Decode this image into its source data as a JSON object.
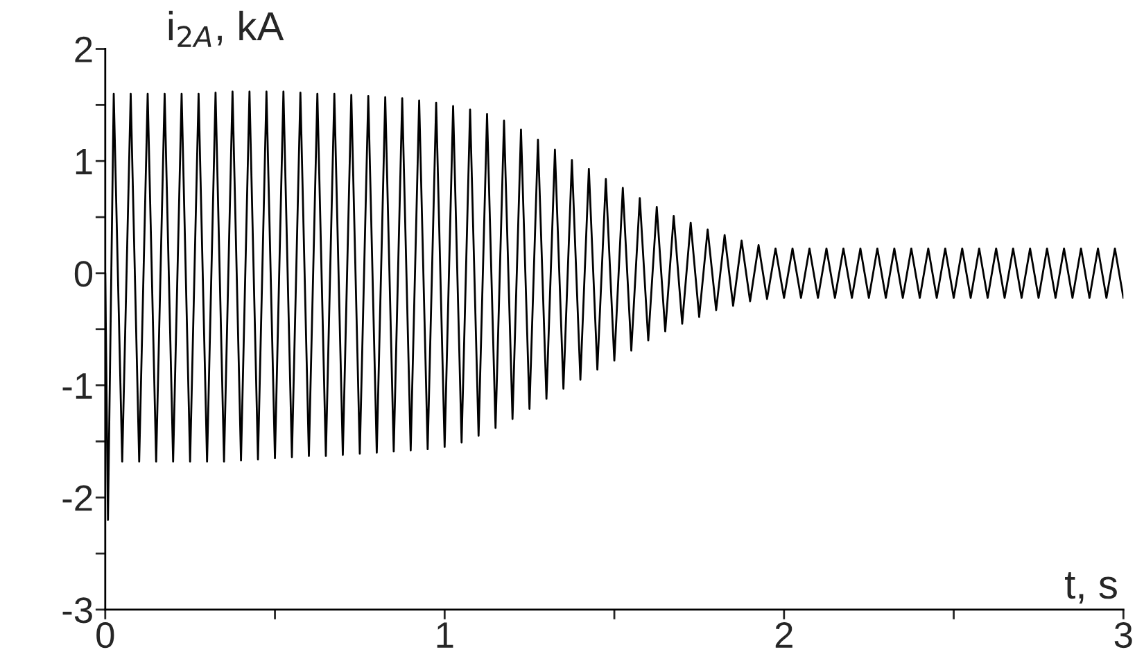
{
  "chart_data": {
    "type": "line",
    "xlabel": "t, s",
    "ylabel": "i$_{2A}$, kA",
    "xlim": [
      0,
      3
    ],
    "ylim": [
      -3,
      2
    ],
    "xticks": [
      0,
      {
        "value": 0.5,
        "label": null
      },
      1,
      {
        "value": 1.5,
        "label": null
      },
      2,
      {
        "value": 2.5,
        "label": null
      },
      3
    ],
    "yticks": [
      -3,
      {
        "value": -2.5,
        "label": null
      },
      -2,
      {
        "value": -1.5,
        "label": null
      },
      -1,
      {
        "value": -0.5,
        "label": null
      },
      0,
      {
        "value": 0.5,
        "label": null
      },
      1,
      {
        "value": 1.5,
        "label": null
      },
      2
    ],
    "grid": false,
    "legend": false,
    "marker": "none",
    "line_style": "solid",
    "series": [
      {
        "color": "#000000",
        "x": [
          0,
          0.008,
          0.025,
          0.05,
          0.075,
          0.1,
          0.125,
          0.15,
          0.175,
          0.2,
          0.225,
          0.25,
          0.275,
          0.3,
          0.325,
          0.35,
          0.375,
          0.4,
          0.425,
          0.45,
          0.475,
          0.5,
          0.525,
          0.55,
          0.575,
          0.6,
          0.625,
          0.65,
          0.675,
          0.7,
          0.725,
          0.75,
          0.775,
          0.8,
          0.825,
          0.85,
          0.875,
          0.9,
          0.925,
          0.95,
          0.975,
          1.0,
          1.025,
          1.05,
          1.075,
          1.1,
          1.125,
          1.15,
          1.175,
          1.2,
          1.225,
          1.25,
          1.275,
          1.3,
          1.325,
          1.35,
          1.375,
          1.4,
          1.425,
          1.45,
          1.475,
          1.5,
          1.525,
          1.55,
          1.575,
          1.6,
          1.625,
          1.65,
          1.675,
          1.7,
          1.725,
          1.75,
          1.775,
          1.8,
          1.825,
          1.85,
          1.875,
          1.9,
          1.925,
          1.95,
          1.975,
          2.0,
          2.025,
          2.05,
          2.075,
          2.1,
          2.125,
          2.15,
          2.175,
          2.2,
          2.225,
          2.25,
          2.275,
          2.3,
          2.325,
          2.35,
          2.375,
          2.4,
          2.425,
          2.45,
          2.475,
          2.5,
          2.525,
          2.55,
          2.575,
          2.6,
          2.625,
          2.65,
          2.675,
          2.7,
          2.725,
          2.75,
          2.775,
          2.8,
          2.825,
          2.85,
          2.875,
          2.9,
          2.925,
          2.95,
          2.975,
          3.0
        ],
        "values": [
          0,
          -2.2,
          1.6,
          -1.68,
          1.6,
          -1.68,
          1.6,
          -1.68,
          1.6,
          -1.68,
          1.6,
          -1.68,
          1.6,
          -1.68,
          1.61,
          -1.68,
          1.62,
          -1.67,
          1.62,
          -1.66,
          1.62,
          -1.65,
          1.62,
          -1.64,
          1.61,
          -1.63,
          1.6,
          -1.63,
          1.6,
          -1.62,
          1.59,
          -1.61,
          1.58,
          -1.6,
          1.57,
          -1.59,
          1.56,
          -1.58,
          1.54,
          -1.57,
          1.52,
          -1.55,
          1.49,
          -1.51,
          1.46,
          -1.45,
          1.42,
          -1.38,
          1.36,
          -1.3,
          1.28,
          -1.21,
          1.19,
          -1.12,
          1.1,
          -1.03,
          1.01,
          -0.95,
          0.93,
          -0.86,
          0.84,
          -0.78,
          0.76,
          -0.69,
          0.67,
          -0.6,
          0.59,
          -0.52,
          0.51,
          -0.45,
          0.45,
          -0.39,
          0.39,
          -0.33,
          0.34,
          -0.29,
          0.29,
          -0.25,
          0.25,
          -0.23,
          0.22,
          -0.22,
          0.22,
          -0.22,
          0.22,
          -0.22,
          0.22,
          -0.22,
          0.22,
          -0.22,
          0.22,
          -0.22,
          0.22,
          -0.22,
          0.22,
          -0.22,
          0.22,
          -0.22,
          0.22,
          -0.22,
          0.22,
          -0.22,
          0.22,
          -0.22,
          0.22,
          -0.22,
          0.22,
          -0.22,
          0.22,
          -0.22,
          0.22,
          -0.22,
          0.22,
          -0.22,
          0.22,
          -0.22,
          0.22,
          -0.22,
          0.22,
          -0.22,
          0.22,
          -0.22
        ]
      }
    ]
  }
}
